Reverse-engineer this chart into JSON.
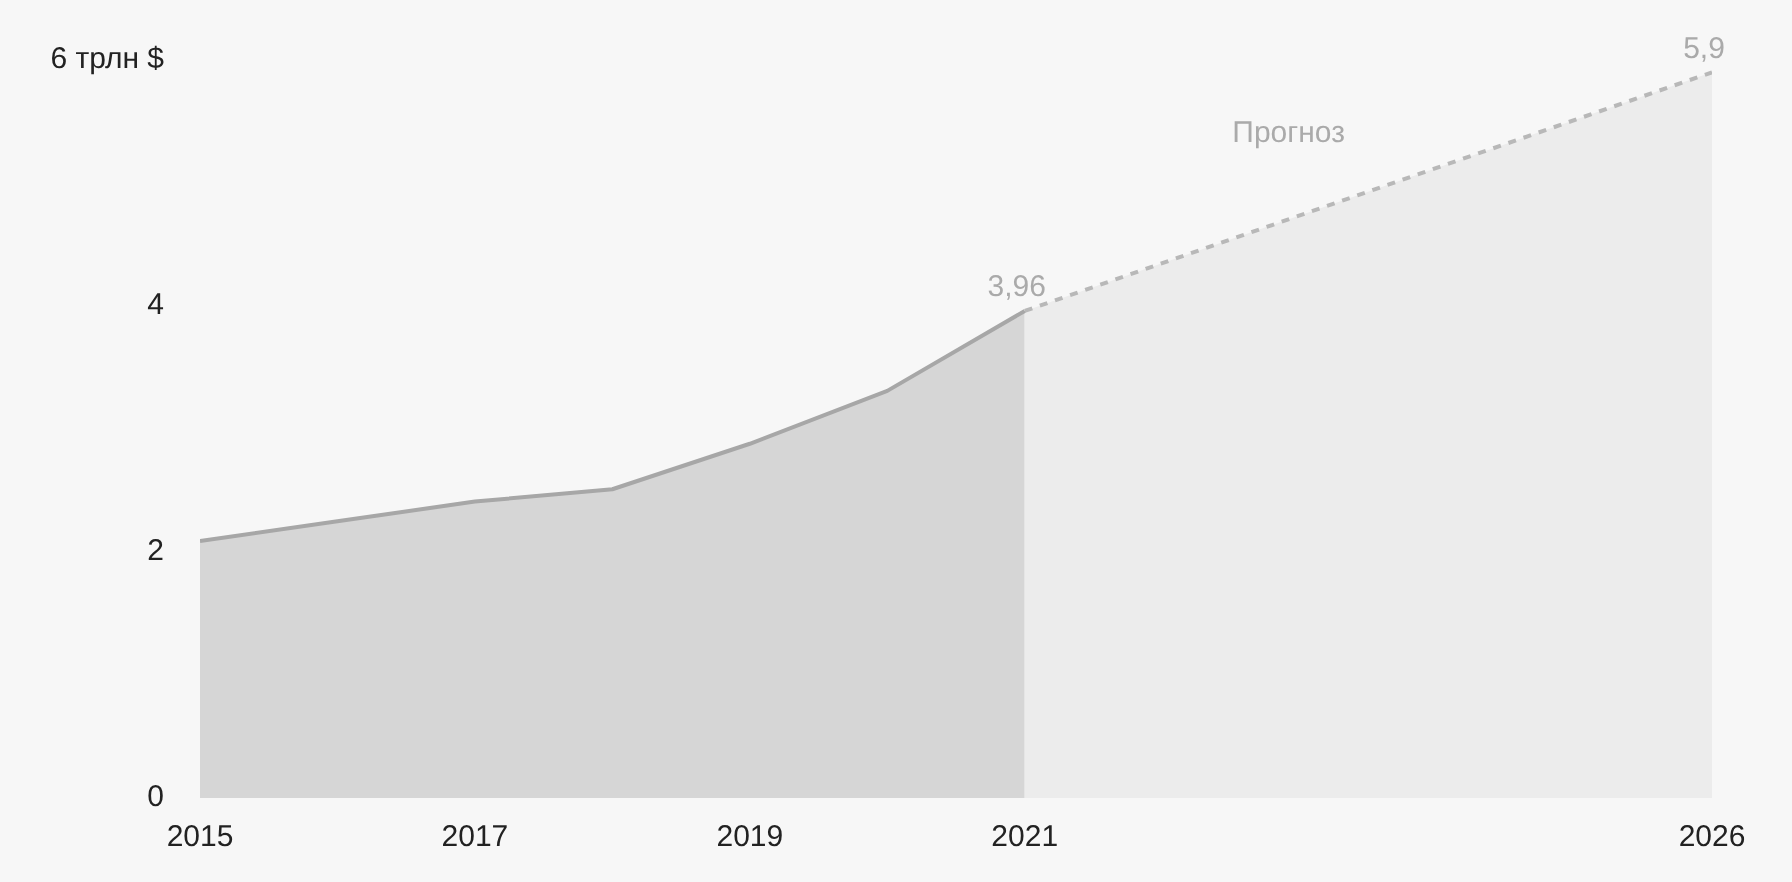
{
  "chart_data": {
    "type": "area",
    "x": [
      2015,
      2016,
      2017,
      2018,
      2019,
      2020,
      2021
    ],
    "series": [
      {
        "color": "#d6d6d6",
        "values": [
          2.09,
          2.25,
          2.41,
          2.51,
          2.88,
          3.31,
          3.96
        ],
        "value_labels": [
          null,
          null,
          null,
          null,
          null,
          null,
          "3,96"
        ]
      },
      {
        "color": "#ececec",
        "line_style": "dashed",
        "x": [
          2021,
          2026
        ],
        "values": [
          3.96,
          5.9
        ],
        "value_labels": [
          null,
          "5,9"
        ]
      }
    ],
    "xlim": [
      2015,
      2026
    ],
    "xticks": [
      2015,
      2017,
      2019,
      2021,
      2026
    ],
    "ylim": [
      0,
      6
    ],
    "yticks": [
      0,
      2,
      4,
      {
        "value": 6,
        "label": "6 трлн $"
      }
    ],
    "annotations": [
      "Прогноз"
    ]
  }
}
